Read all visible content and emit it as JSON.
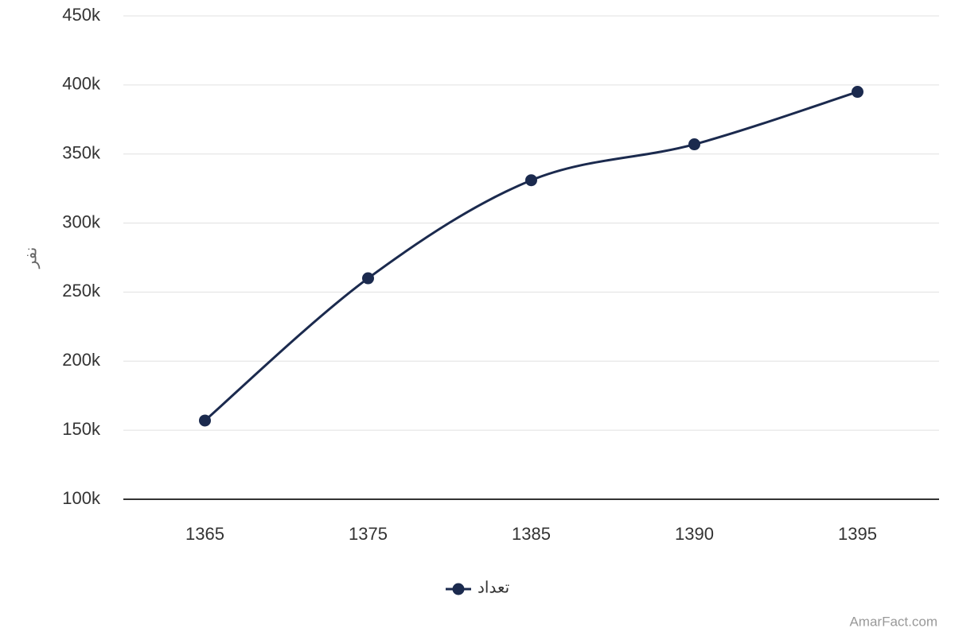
{
  "chart_data": {
    "type": "line",
    "y_label": "نفر",
    "categories": [
      "1365",
      "1375",
      "1385",
      "1390",
      "1395"
    ],
    "series": [
      {
        "name": "تعداد",
        "color": "#1b2a4e",
        "values": [
          157000,
          260000,
          331000,
          357000,
          395000
        ]
      }
    ],
    "ylim": [
      100000,
      450000
    ],
    "yticks": [
      {
        "value": 100000,
        "label": "100k"
      },
      {
        "value": 150000,
        "label": "150k"
      },
      {
        "value": 200000,
        "label": "200k"
      },
      {
        "value": 250000,
        "label": "250k"
      },
      {
        "value": 300000,
        "label": "300k"
      },
      {
        "value": 350000,
        "label": "350k"
      },
      {
        "value": 400000,
        "label": "400k"
      },
      {
        "value": 450000,
        "label": "450k"
      }
    ],
    "grid": true,
    "legend": "bottom",
    "credit": "AmarFact.com"
  }
}
